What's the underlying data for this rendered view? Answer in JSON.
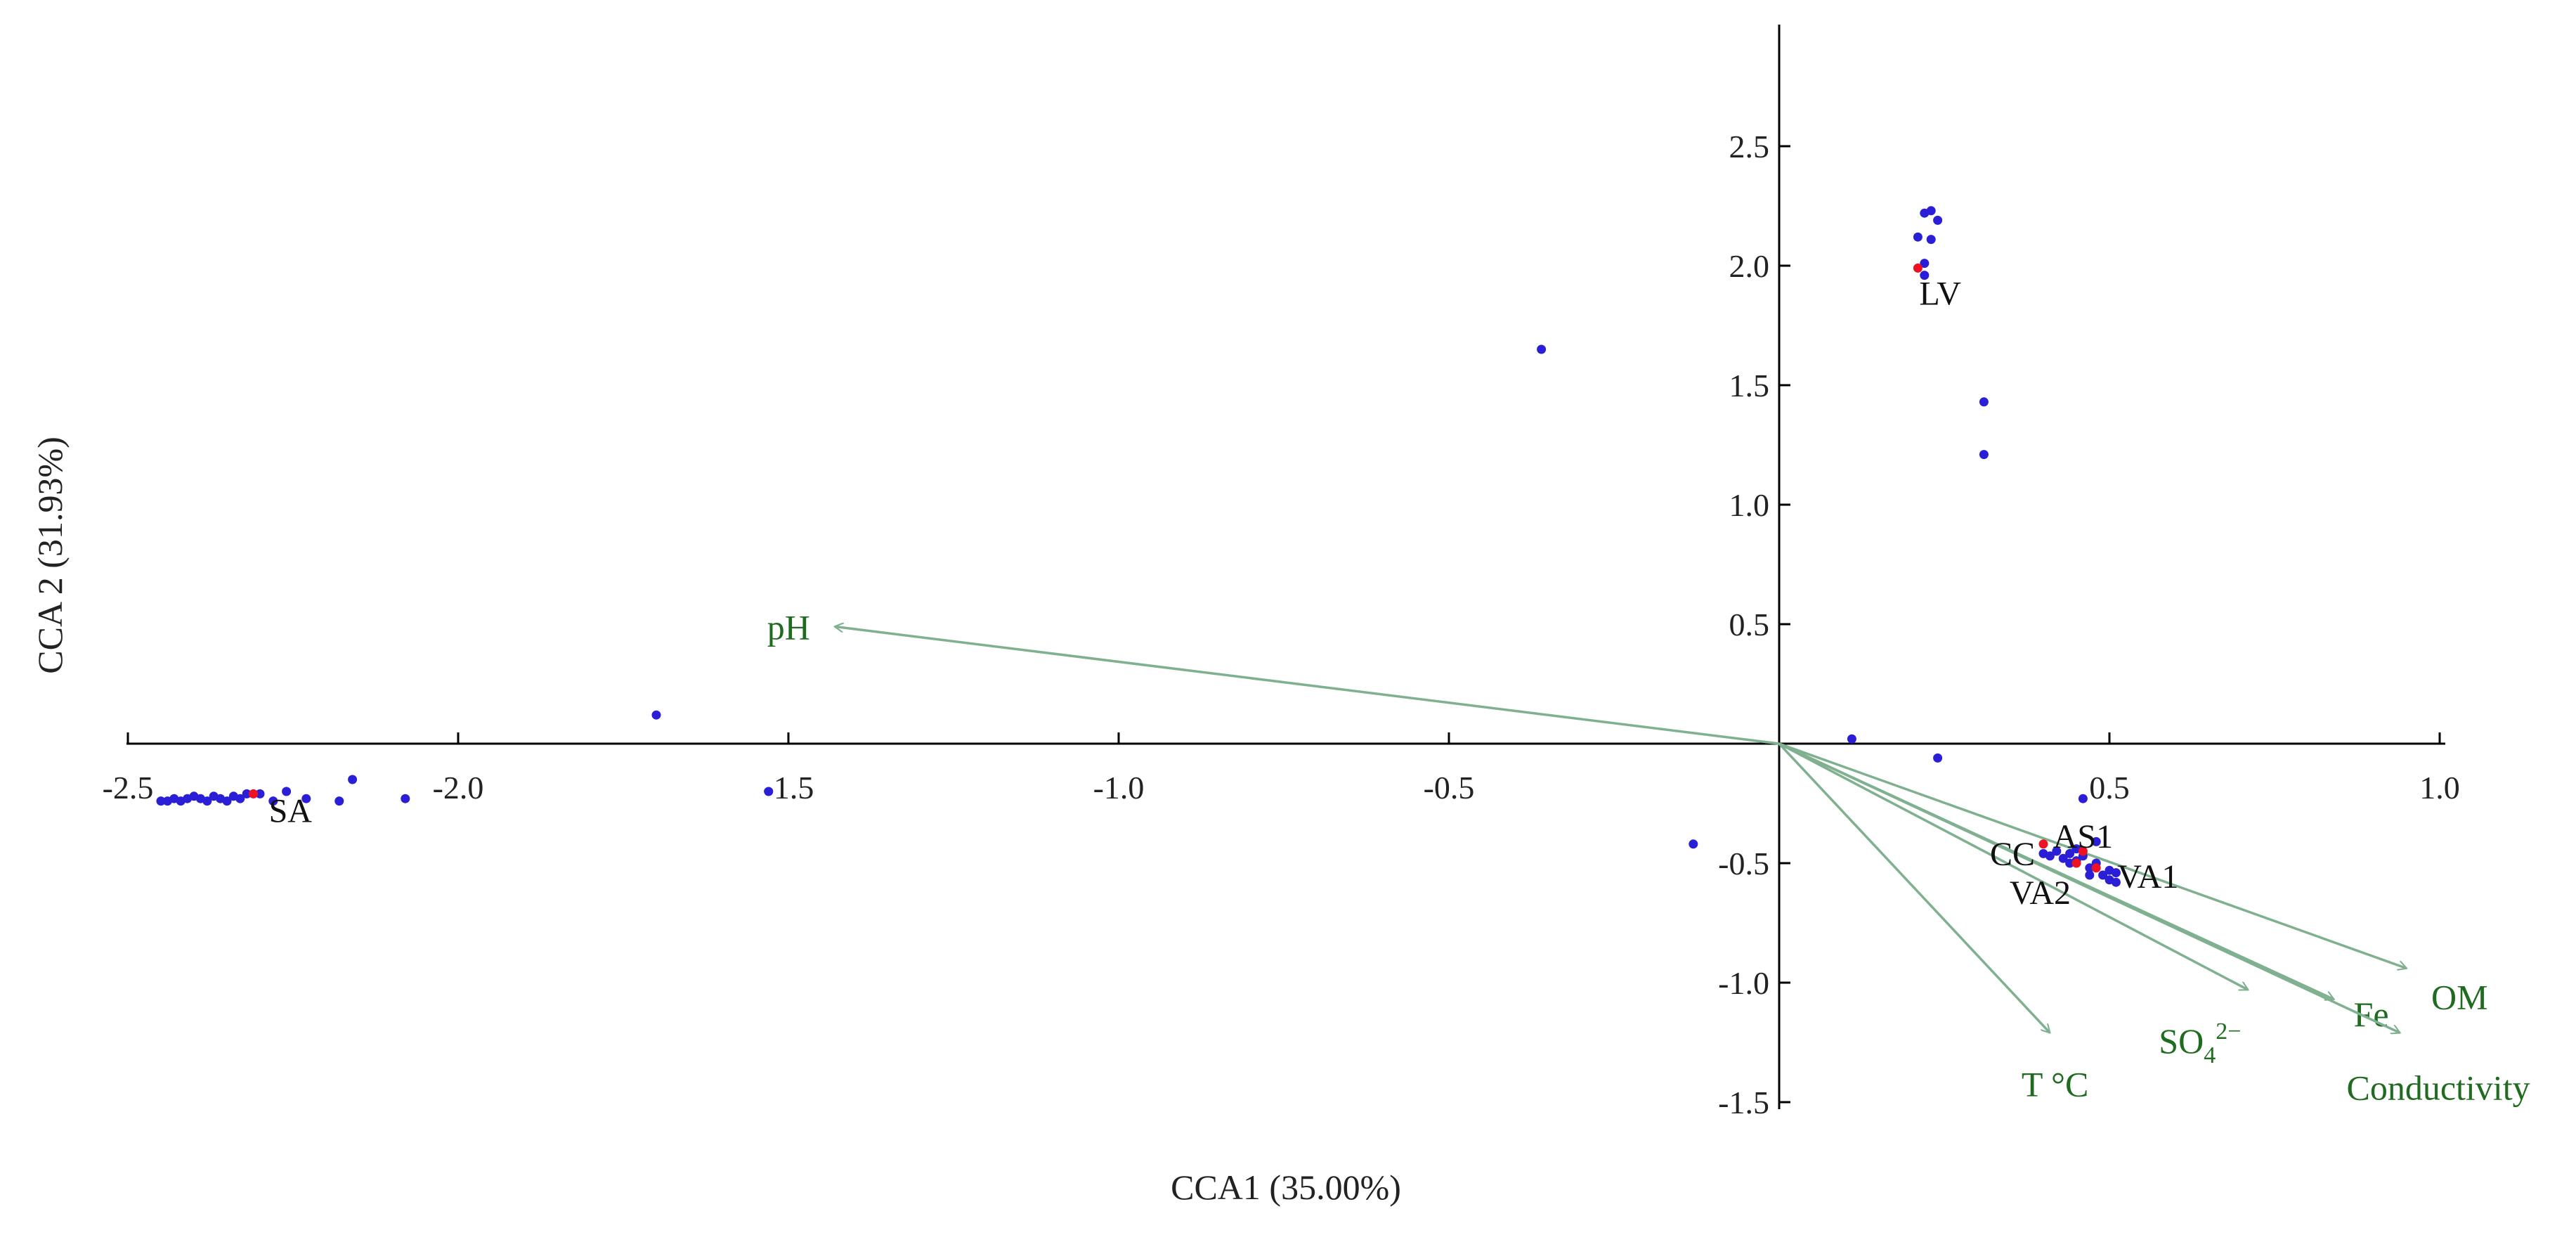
{
  "chart_data": {
    "type": "scatter",
    "title": "",
    "xlabel": "CCA1 (35.00%)",
    "ylabel": "CCA 2 (31.93%)",
    "xlim": [
      -2.5,
      1.0
    ],
    "ylim": [
      -1.5,
      3.0
    ],
    "x_ticks": [
      -2.5,
      -2.0,
      -1.5,
      -1.0,
      -0.5,
      0.5,
      1.0
    ],
    "x_tick_labels": [
      "-2.5",
      "-2.0",
      "-1.5",
      "-1.0",
      "-0.5",
      "0.5",
      "1.0"
    ],
    "y_ticks": [
      -1.5,
      -1.0,
      -0.5,
      0.5,
      1.0,
      1.5,
      2.0,
      2.5
    ],
    "y_tick_labels": [
      "-1.5",
      "-1.0",
      "-0.5",
      "0.5",
      "1.0",
      "1.5",
      "2.0",
      "2.5"
    ],
    "grid": false,
    "colors": {
      "samples": "#2a1fd6",
      "sites": "#ee1122",
      "vectors": "#7fb08f",
      "vector_labels": "#1f6b1f",
      "axes": "#000000"
    },
    "sample_points": [
      [
        -2.45,
        -0.24
      ],
      [
        -2.44,
        -0.24
      ],
      [
        -2.43,
        -0.23
      ],
      [
        -2.42,
        -0.24
      ],
      [
        -2.41,
        -0.23
      ],
      [
        -2.4,
        -0.22
      ],
      [
        -2.39,
        -0.23
      ],
      [
        -2.38,
        -0.24
      ],
      [
        -2.37,
        -0.22
      ],
      [
        -2.36,
        -0.23
      ],
      [
        -2.35,
        -0.24
      ],
      [
        -2.34,
        -0.22
      ],
      [
        -2.33,
        -0.23
      ],
      [
        -2.32,
        -0.21
      ],
      [
        -2.3,
        -0.21
      ],
      [
        -2.28,
        -0.24
      ],
      [
        -2.26,
        -0.2
      ],
      [
        -2.23,
        -0.23
      ],
      [
        -2.18,
        -0.24
      ],
      [
        -2.16,
        -0.15
      ],
      [
        -2.08,
        -0.23
      ],
      [
        -1.7,
        0.12
      ],
      [
        -1.53,
        -0.2
      ],
      [
        -0.36,
        1.65
      ],
      [
        -0.13,
        -0.42
      ],
      [
        0.11,
        0.02
      ],
      [
        0.24,
        -0.06
      ],
      [
        0.21,
        2.12
      ],
      [
        0.22,
        2.22
      ],
      [
        0.23,
        2.23
      ],
      [
        0.24,
        2.19
      ],
      [
        0.23,
        2.11
      ],
      [
        0.22,
        2.01
      ],
      [
        0.22,
        1.96
      ],
      [
        0.31,
        1.43
      ],
      [
        0.31,
        1.21
      ],
      [
        0.4,
        -0.46
      ],
      [
        0.41,
        -0.47
      ],
      [
        0.42,
        -0.45
      ],
      [
        0.43,
        -0.48
      ],
      [
        0.44,
        -0.46
      ],
      [
        0.45,
        -0.49
      ],
      [
        0.46,
        -0.47
      ],
      [
        0.46,
        -0.23
      ],
      [
        0.47,
        -0.52
      ],
      [
        0.48,
        -0.5
      ],
      [
        0.48,
        -0.41
      ],
      [
        0.49,
        -0.55
      ],
      [
        0.5,
        -0.53
      ],
      [
        0.5,
        -0.57
      ],
      [
        0.51,
        -0.54
      ],
      [
        0.51,
        -0.58
      ],
      [
        0.44,
        -0.5
      ],
      [
        0.47,
        -0.55
      ],
      [
        0.45,
        -0.44
      ]
    ],
    "sites": [
      {
        "name": "SA",
        "x": -2.31,
        "y": -0.21
      },
      {
        "name": "LV",
        "x": 0.21,
        "y": 1.99
      },
      {
        "name": "CC",
        "x": 0.4,
        "y": -0.42
      },
      {
        "name": "AS1",
        "x": 0.46,
        "y": -0.45
      },
      {
        "name": "VA1",
        "x": 0.48,
        "y": -0.52
      },
      {
        "name": "VA2",
        "x": 0.45,
        "y": -0.5
      }
    ],
    "env_vectors": [
      {
        "name": "pH",
        "x": -1.43,
        "y": 0.49
      },
      {
        "name": "T °C",
        "x": 0.41,
        "y": -1.21
      },
      {
        "name": "SO4 2-",
        "x": 0.71,
        "y": -1.03
      },
      {
        "name": "Fe",
        "x": 0.84,
        "y": -1.07
      },
      {
        "name": "OM",
        "x": 0.95,
        "y": -0.94
      },
      {
        "name": "Conductivity",
        "x": 0.94,
        "y": -1.21
      }
    ]
  }
}
